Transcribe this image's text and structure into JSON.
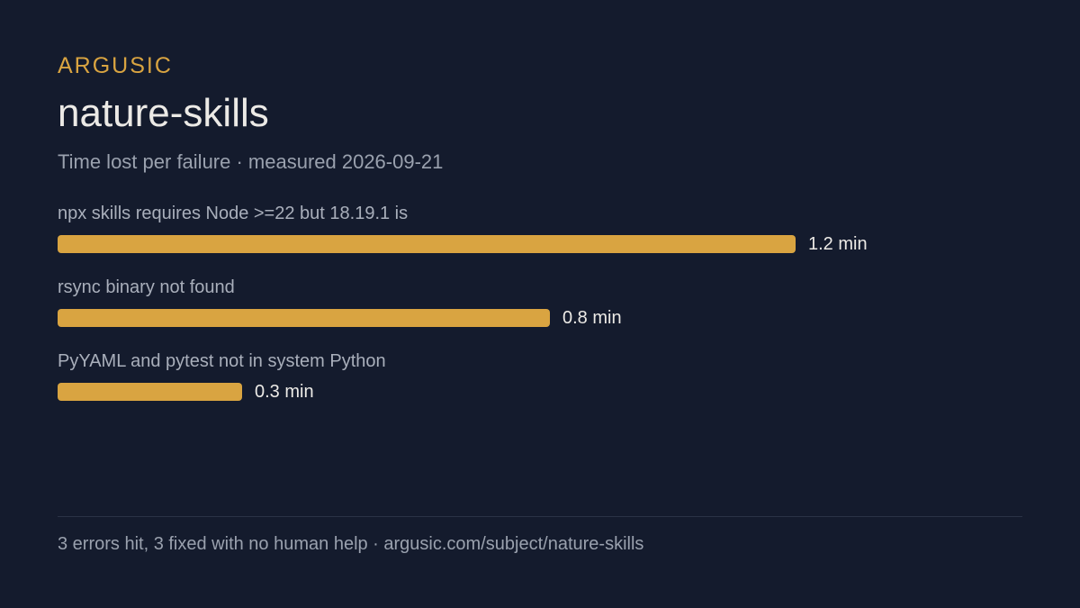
{
  "header": {
    "brand": "ARGUSIC",
    "title": "nature-skills",
    "subtitle": "Time lost per failure · measured 2026-09-21"
  },
  "footer": {
    "text": "3 errors hit, 3 fixed with no human help · argusic.com/subject/nature-skills"
  },
  "colors": {
    "bar": "#d9a441",
    "background": "#141b2d",
    "label": "#a9afbb",
    "value": "#eceae6"
  },
  "chart_data": {
    "type": "bar",
    "orientation": "horizontal",
    "unit": "min",
    "categories": [
      "npx skills requires Node >=22 but 18.19.1 is",
      "rsync binary not found",
      "PyYAML and pytest not in system Python"
    ],
    "values": [
      1.2,
      0.8,
      0.3
    ],
    "value_labels": [
      "1.2 min",
      "0.8 min",
      "0.3 min"
    ],
    "xlim": [
      0,
      1.2
    ],
    "grid": false,
    "legend": "none"
  }
}
